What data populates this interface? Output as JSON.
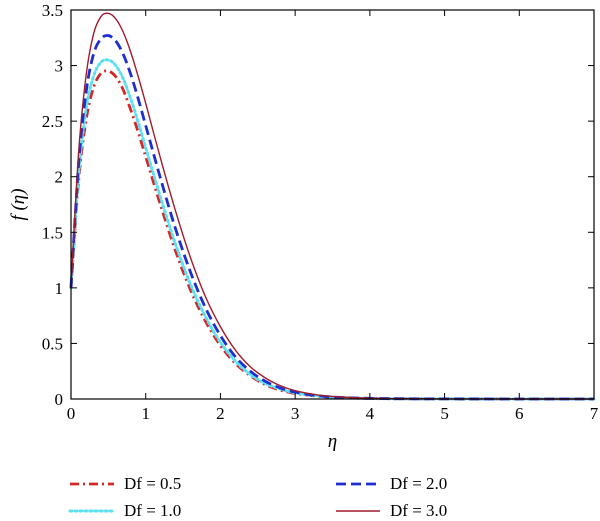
{
  "chart_data": {
    "type": "line",
    "title": "",
    "xlabel": "η",
    "ylabel": "f (η)",
    "xlim": [
      0,
      7
    ],
    "ylim": [
      0,
      3.5
    ],
    "xticks": [
      "0",
      "1",
      "2",
      "3",
      "4",
      "5",
      "6",
      "7"
    ],
    "yticks": [
      "0",
      "0.5",
      "1",
      "1.5",
      "2",
      "2.5",
      "3",
      "3.5"
    ],
    "grid": false,
    "legend_position": "bottom",
    "series": [
      {
        "name": "Df = 0.5",
        "color": "#d62728",
        "style": "dash-dot",
        "x": [
          0,
          0.1,
          0.2,
          0.3,
          0.4,
          0.5,
          0.6,
          0.7,
          0.8,
          0.9,
          1.0,
          1.2,
          1.4,
          1.6,
          1.8,
          2.0,
          2.2,
          2.4,
          2.6,
          2.8,
          3.0,
          3.3,
          3.6,
          4.0,
          4.5,
          5.0,
          6.0,
          7.0
        ],
        "y": [
          1.0,
          1.95,
          2.5,
          2.8,
          2.93,
          2.95,
          2.9,
          2.78,
          2.6,
          2.4,
          2.18,
          1.74,
          1.33,
          0.98,
          0.7,
          0.48,
          0.32,
          0.21,
          0.13,
          0.08,
          0.05,
          0.025,
          0.012,
          0.005,
          0.002,
          0.001,
          0.0,
          0.0
        ]
      },
      {
        "name": "Df = 1.0",
        "color": "#5ce0f0",
        "style": "dotted",
        "x": [
          0,
          0.1,
          0.2,
          0.3,
          0.4,
          0.5,
          0.6,
          0.7,
          0.8,
          0.9,
          1.0,
          1.2,
          1.4,
          1.6,
          1.8,
          2.0,
          2.2,
          2.4,
          2.6,
          2.8,
          3.0,
          3.3,
          3.6,
          4.0,
          4.5,
          5.0,
          6.0,
          7.0
        ],
        "y": [
          1.0,
          2.0,
          2.6,
          2.9,
          3.03,
          3.05,
          3.0,
          2.88,
          2.7,
          2.49,
          2.26,
          1.81,
          1.39,
          1.03,
          0.74,
          0.51,
          0.34,
          0.22,
          0.14,
          0.09,
          0.055,
          0.027,
          0.013,
          0.005,
          0.002,
          0.001,
          0.0,
          0.0
        ]
      },
      {
        "name": "Df = 2.0",
        "color": "#1f2fcf",
        "style": "dashed",
        "x": [
          0,
          0.1,
          0.2,
          0.3,
          0.4,
          0.5,
          0.6,
          0.7,
          0.8,
          0.9,
          1.0,
          1.2,
          1.4,
          1.6,
          1.8,
          2.0,
          2.2,
          2.4,
          2.6,
          2.8,
          3.0,
          3.3,
          3.6,
          4.0,
          4.5,
          5.0,
          6.0,
          7.0
        ],
        "y": [
          1.0,
          2.1,
          2.75,
          3.1,
          3.24,
          3.27,
          3.22,
          3.1,
          2.92,
          2.7,
          2.46,
          1.98,
          1.53,
          1.14,
          0.82,
          0.57,
          0.38,
          0.25,
          0.16,
          0.1,
          0.062,
          0.03,
          0.014,
          0.006,
          0.002,
          0.001,
          0.0,
          0.0
        ]
      },
      {
        "name": "Df = 3.0",
        "color": "#a01c2c",
        "style": "solid",
        "x": [
          0,
          0.1,
          0.2,
          0.3,
          0.4,
          0.5,
          0.6,
          0.7,
          0.8,
          0.9,
          1.0,
          1.2,
          1.4,
          1.6,
          1.8,
          2.0,
          2.2,
          2.4,
          2.6,
          2.8,
          3.0,
          3.3,
          3.6,
          4.0,
          4.5,
          5.0,
          6.0,
          7.0
        ],
        "y": [
          1.0,
          2.2,
          2.9,
          3.28,
          3.44,
          3.47,
          3.42,
          3.3,
          3.12,
          2.9,
          2.66,
          2.16,
          1.69,
          1.27,
          0.92,
          0.65,
          0.44,
          0.29,
          0.19,
          0.12,
          0.075,
          0.037,
          0.018,
          0.007,
          0.003,
          0.001,
          0.0,
          0.0
        ]
      }
    ]
  }
}
